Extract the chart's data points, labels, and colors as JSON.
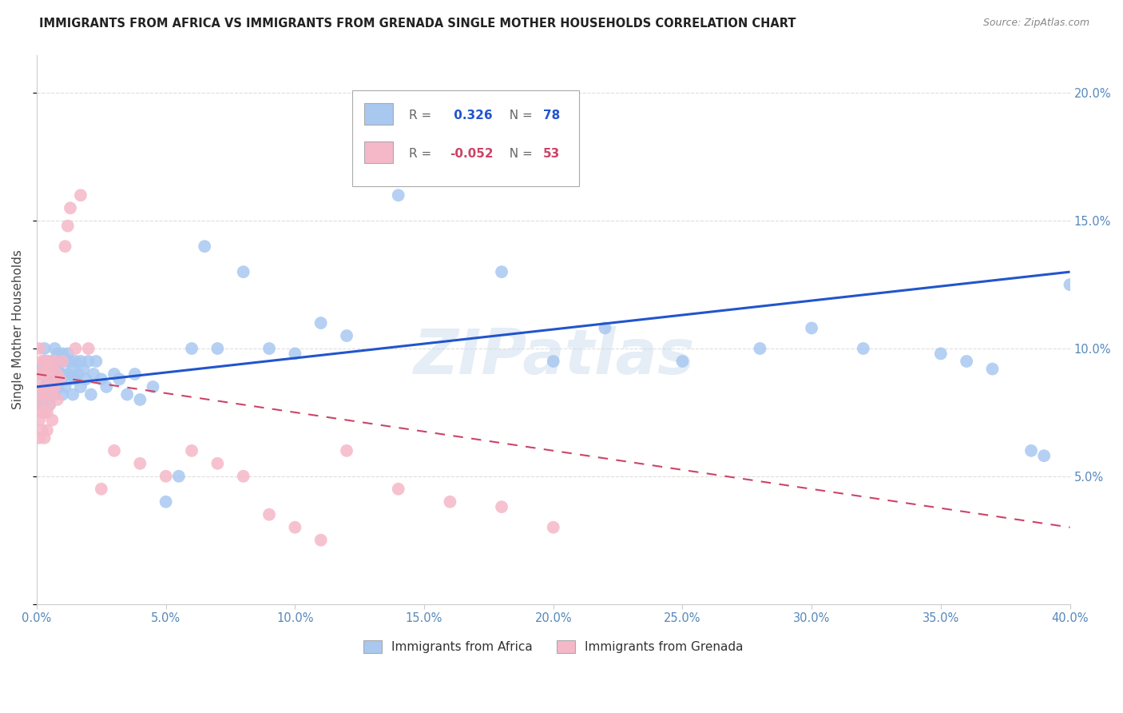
{
  "title": "IMMIGRANTS FROM AFRICA VS IMMIGRANTS FROM GRENADA SINGLE MOTHER HOUSEHOLDS CORRELATION CHART",
  "source": "Source: ZipAtlas.com",
  "ylabel": "Single Mother Households",
  "ylim": [
    0.0,
    0.215
  ],
  "xlim": [
    0.0,
    0.4
  ],
  "africa_color": "#a8c8f0",
  "africa_line_color": "#2255cc",
  "grenada_color": "#f5b8c8",
  "grenada_line_color": "#cc4466",
  "africa_R": 0.326,
  "africa_N": 78,
  "grenada_R": -0.052,
  "grenada_N": 53,
  "africa_scatter_x": [
    0.001,
    0.001,
    0.002,
    0.002,
    0.003,
    0.003,
    0.003,
    0.004,
    0.004,
    0.004,
    0.005,
    0.005,
    0.005,
    0.006,
    0.006,
    0.007,
    0.007,
    0.007,
    0.008,
    0.008,
    0.008,
    0.009,
    0.009,
    0.01,
    0.01,
    0.01,
    0.011,
    0.011,
    0.012,
    0.012,
    0.013,
    0.013,
    0.014,
    0.014,
    0.015,
    0.015,
    0.016,
    0.017,
    0.017,
    0.018,
    0.019,
    0.02,
    0.021,
    0.022,
    0.023,
    0.025,
    0.027,
    0.03,
    0.032,
    0.035,
    0.038,
    0.04,
    0.045,
    0.05,
    0.055,
    0.06,
    0.065,
    0.07,
    0.08,
    0.09,
    0.1,
    0.11,
    0.12,
    0.14,
    0.16,
    0.18,
    0.2,
    0.22,
    0.25,
    0.28,
    0.3,
    0.32,
    0.35,
    0.36,
    0.37,
    0.385,
    0.39,
    0.4
  ],
  "africa_scatter_y": [
    0.08,
    0.09,
    0.078,
    0.092,
    0.085,
    0.095,
    0.1,
    0.082,
    0.088,
    0.095,
    0.078,
    0.085,
    0.092,
    0.088,
    0.095,
    0.082,
    0.09,
    0.1,
    0.085,
    0.092,
    0.098,
    0.088,
    0.095,
    0.082,
    0.09,
    0.098,
    0.085,
    0.095,
    0.09,
    0.098,
    0.088,
    0.095,
    0.082,
    0.092,
    0.088,
    0.095,
    0.09,
    0.085,
    0.095,
    0.092,
    0.088,
    0.095,
    0.082,
    0.09,
    0.095,
    0.088,
    0.085,
    0.09,
    0.088,
    0.082,
    0.09,
    0.08,
    0.085,
    0.04,
    0.05,
    0.1,
    0.14,
    0.1,
    0.13,
    0.1,
    0.098,
    0.11,
    0.105,
    0.16,
    0.178,
    0.13,
    0.095,
    0.108,
    0.095,
    0.1,
    0.108,
    0.1,
    0.098,
    0.095,
    0.092,
    0.06,
    0.058,
    0.125
  ],
  "grenada_scatter_x": [
    0.001,
    0.001,
    0.001,
    0.001,
    0.001,
    0.001,
    0.002,
    0.002,
    0.002,
    0.002,
    0.002,
    0.003,
    0.003,
    0.003,
    0.003,
    0.003,
    0.004,
    0.004,
    0.004,
    0.004,
    0.005,
    0.005,
    0.005,
    0.006,
    0.006,
    0.006,
    0.007,
    0.007,
    0.008,
    0.008,
    0.009,
    0.01,
    0.011,
    0.012,
    0.013,
    0.015,
    0.017,
    0.02,
    0.025,
    0.03,
    0.04,
    0.05,
    0.06,
    0.07,
    0.08,
    0.09,
    0.1,
    0.11,
    0.12,
    0.14,
    0.16,
    0.18,
    0.2
  ],
  "grenada_scatter_y": [
    0.1,
    0.09,
    0.085,
    0.078,
    0.072,
    0.065,
    0.095,
    0.09,
    0.082,
    0.075,
    0.068,
    0.095,
    0.09,
    0.082,
    0.075,
    0.065,
    0.092,
    0.085,
    0.075,
    0.068,
    0.095,
    0.088,
    0.078,
    0.092,
    0.082,
    0.072,
    0.095,
    0.085,
    0.09,
    0.08,
    0.088,
    0.095,
    0.14,
    0.148,
    0.155,
    0.1,
    0.16,
    0.1,
    0.045,
    0.06,
    0.055,
    0.05,
    0.06,
    0.055,
    0.05,
    0.035,
    0.03,
    0.025,
    0.06,
    0.045,
    0.04,
    0.038,
    0.03
  ],
  "watermark": "ZIPatlas",
  "background_color": "#ffffff",
  "grid_color": "#dddddd"
}
